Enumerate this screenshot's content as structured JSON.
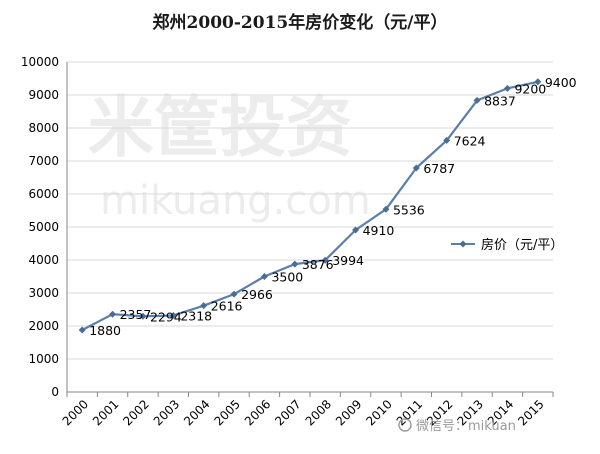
{
  "chart_data": {
    "type": "line",
    "title": "郑州2000-2015年房价变化（元/平）",
    "xlabel": "",
    "ylabel": "",
    "categories": [
      "2000",
      "2001",
      "2002",
      "2003",
      "2004",
      "2005",
      "2006",
      "2007",
      "2008",
      "2009",
      "2010",
      "2011",
      "2012",
      "2013",
      "2014",
      "2015"
    ],
    "series": [
      {
        "name": "房价（元/平）",
        "values": [
          1880,
          2357,
          2294,
          2318,
          2616,
          2966,
          3500,
          3876,
          3994,
          4910,
          5536,
          6787,
          7624,
          8837,
          9200,
          9400
        ]
      }
    ],
    "ylim": [
      0,
      10000
    ],
    "yticks": [
      0,
      1000,
      2000,
      3000,
      4000,
      5000,
      6000,
      7000,
      8000,
      9000,
      10000
    ],
    "grid": true,
    "legend": "right",
    "colors": {
      "line": "#5a7fa8",
      "marker": "#4a6d96",
      "grid": "#d9d9d9",
      "axis": "#868686"
    }
  },
  "watermark": {
    "main": "米筐投资",
    "url": "mikuang.com",
    "corner": "微信号：mikuan"
  }
}
